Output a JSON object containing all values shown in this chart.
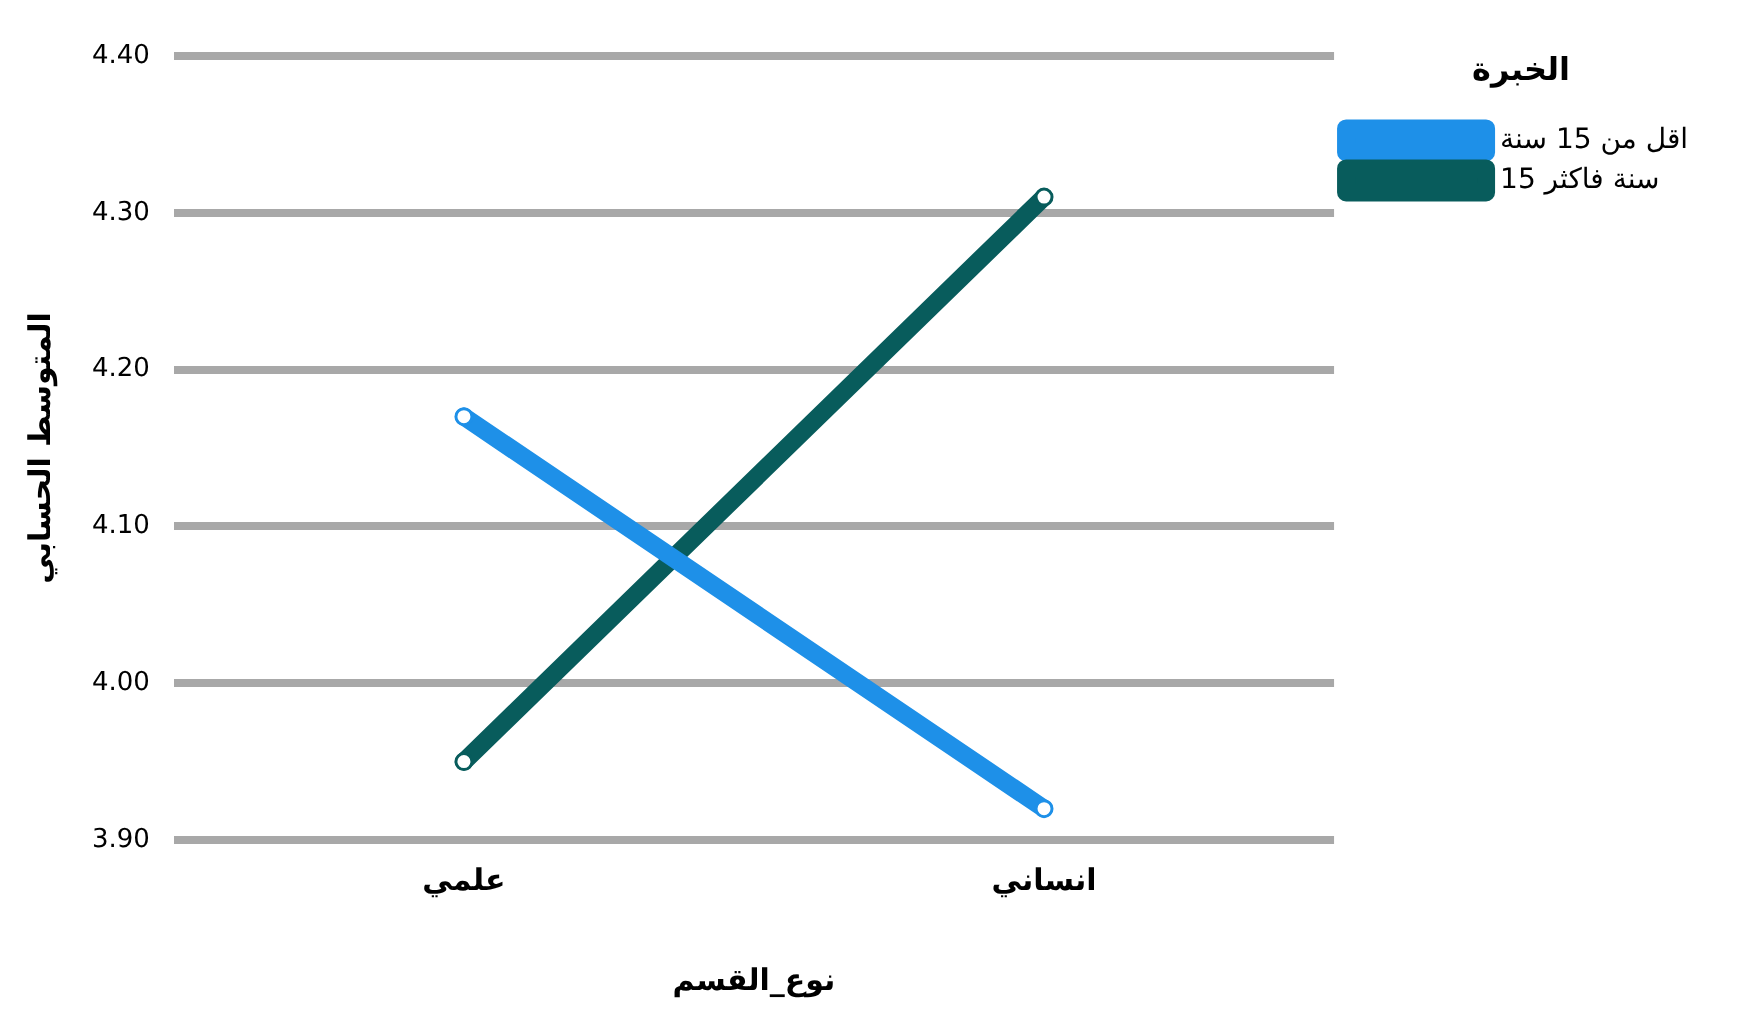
{
  "chart_data": {
    "type": "line",
    "categories": [
      "علمي",
      "انساني"
    ],
    "series": [
      {
        "name": "اقل من 15 سنة",
        "color": "#1e90e8",
        "values": [
          4.17,
          3.92
        ]
      },
      {
        "name": "15 سنة فاكثر",
        "color": "#085c5c",
        "values": [
          3.95,
          4.31
        ]
      }
    ],
    "xlabel": "نوع_القسم",
    "ylabel": "المتوسط الحسابي",
    "legend_title": "الخبرة",
    "legend": "top right",
    "ylim": [
      3.9,
      4.4
    ],
    "yticks": [
      {
        "value": 3.9,
        "label": "3.90"
      },
      {
        "value": 4.0,
        "label": "4.00"
      },
      {
        "value": 4.1,
        "label": "4.10"
      },
      {
        "value": 4.2,
        "label": "4.20"
      },
      {
        "value": 4.3,
        "label": "4.30"
      },
      {
        "value": 4.4,
        "label": "4.40"
      }
    ],
    "grid": "y",
    "marker": "circle"
  }
}
